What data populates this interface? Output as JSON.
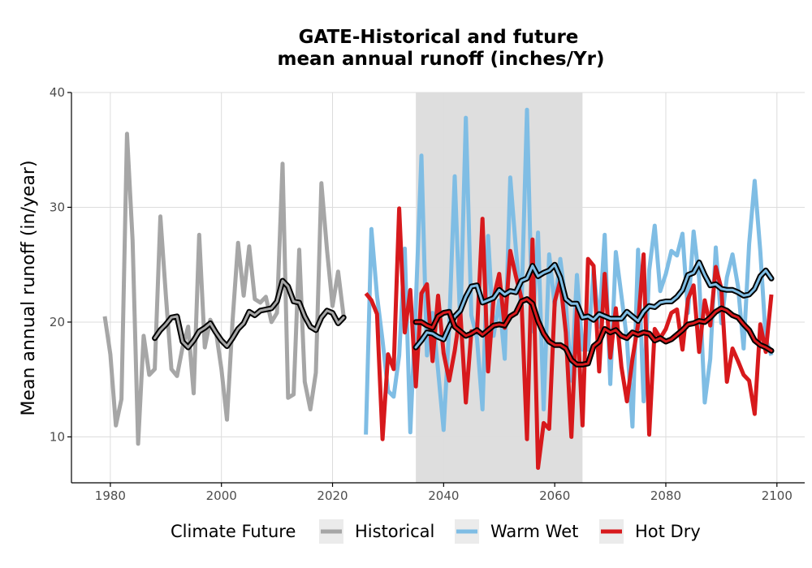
{
  "chart_data": {
    "type": "line",
    "title_line1": "GATE-Historical and future",
    "title_line2": "mean annual runoff (inches/Yr)",
    "xlabel": "",
    "ylabel": "Mean annual runoff (in/year)",
    "xlim": [
      1973,
      2105
    ],
    "ylim": [
      6,
      40
    ],
    "x_ticks": [
      1980,
      2000,
      2020,
      2040,
      2060,
      2080,
      2100
    ],
    "y_ticks": [
      10,
      20,
      30,
      40
    ],
    "grid": true,
    "shaded_period": [
      2035,
      2065
    ],
    "shaded_color": "#dcdcdc",
    "legend": {
      "title": "Climate Future",
      "placement": "bottom",
      "items": [
        "Historical",
        "Warm Wet",
        "Hot Dry"
      ]
    },
    "series": [
      {
        "name": "Historical",
        "color": "#a6a6a6",
        "x": [
          1979,
          1980,
          1981,
          1982,
          1983,
          1984,
          1985,
          1986,
          1987,
          1988,
          1989,
          1990,
          1991,
          1992,
          1993,
          1994,
          1995,
          1996,
          1997,
          1998,
          1999,
          2000,
          2001,
          2002,
          2003,
          2004,
          2005,
          2006,
          2007,
          2008,
          2009,
          2010,
          2011,
          2012,
          2013,
          2014,
          2015,
          2016,
          2017,
          2018,
          2019,
          2020,
          2021,
          2022
        ],
        "values": [
          20.5,
          17.2,
          11.0,
          13.3,
          36.4,
          27.1,
          9.4,
          18.8,
          15.4,
          15.9,
          29.2,
          22.3,
          15.9,
          15.3,
          17.8,
          19.6,
          13.8,
          27.6,
          17.8,
          20.2,
          19.2,
          15.9,
          11.5,
          20.1,
          26.9,
          22.3,
          26.6,
          22.0,
          21.7,
          22.2,
          20.0,
          20.8,
          33.8,
          13.4,
          13.7,
          26.3,
          14.8,
          12.4,
          15.6,
          32.1,
          26.3,
          21.4,
          24.4,
          20.5
        ]
      },
      {
        "name": "Warm Wet",
        "color": "#7fbde4",
        "x": [
          2026,
          2027,
          2028,
          2029,
          2030,
          2031,
          2032,
          2033,
          2034,
          2035,
          2036,
          2037,
          2038,
          2039,
          2040,
          2041,
          2042,
          2043,
          2044,
          2045,
          2046,
          2047,
          2048,
          2049,
          2050,
          2051,
          2052,
          2053,
          2054,
          2055,
          2056,
          2057,
          2058,
          2059,
          2060,
          2061,
          2062,
          2063,
          2064,
          2065,
          2066,
          2067,
          2068,
          2069,
          2070,
          2071,
          2072,
          2073,
          2074,
          2075,
          2076,
          2077,
          2078,
          2079,
          2080,
          2081,
          2082,
          2083,
          2084,
          2085,
          2086,
          2087,
          2088,
          2089,
          2090,
          2091,
          2092,
          2093,
          2094,
          2095,
          2096,
          2097,
          2098,
          2099
        ],
        "values": [
          10.2,
          28.1,
          22.3,
          18.4,
          14.0,
          13.5,
          17.1,
          26.4,
          10.4,
          21.6,
          34.5,
          17.1,
          20.8,
          15.8,
          10.6,
          19.6,
          32.7,
          19.7,
          37.8,
          20.6,
          18.6,
          12.4,
          27.5,
          18.8,
          21.9,
          16.8,
          32.6,
          26.4,
          21.0,
          38.5,
          19.2,
          27.8,
          12.4,
          25.9,
          21.4,
          25.5,
          21.7,
          14.9,
          24.1,
          17.6,
          17.6,
          24.6,
          19.6,
          27.6,
          14.6,
          26.1,
          22.3,
          18.5,
          10.9,
          26.3,
          13.1,
          24.5,
          28.4,
          22.7,
          24.2,
          26.2,
          25.8,
          27.7,
          20.8,
          27.9,
          23.8,
          13.0,
          16.8,
          26.5,
          19.9,
          23.9,
          25.9,
          23.1,
          17.7,
          26.8,
          32.3,
          26.2,
          18.5,
          17.1
        ]
      },
      {
        "name": "Hot Dry",
        "color": "#d7191c",
        "x": [
          2026,
          2027,
          2028,
          2029,
          2030,
          2031,
          2032,
          2033,
          2034,
          2035,
          2036,
          2037,
          2038,
          2039,
          2040,
          2041,
          2042,
          2043,
          2044,
          2045,
          2046,
          2047,
          2048,
          2049,
          2050,
          2051,
          2052,
          2053,
          2054,
          2055,
          2056,
          2057,
          2058,
          2059,
          2060,
          2061,
          2062,
          2063,
          2064,
          2065,
          2066,
          2067,
          2068,
          2069,
          2070,
          2071,
          2072,
          2073,
          2074,
          2075,
          2076,
          2077,
          2078,
          2079,
          2080,
          2081,
          2082,
          2083,
          2084,
          2085,
          2086,
          2087,
          2088,
          2089,
          2090,
          2091,
          2092,
          2093,
          2094,
          2095,
          2096,
          2097,
          2098,
          2099
        ],
        "values": [
          22.5,
          21.9,
          20.7,
          9.8,
          17.2,
          15.9,
          29.9,
          19.1,
          22.8,
          14.4,
          22.5,
          23.3,
          16.6,
          22.3,
          17.3,
          14.9,
          17.5,
          20.9,
          13.0,
          19.2,
          19.1,
          29.0,
          15.7,
          22.1,
          24.2,
          19.5,
          26.2,
          24.0,
          22.1,
          9.8,
          27.2,
          7.3,
          11.2,
          10.7,
          21.8,
          23.6,
          19.1,
          10.0,
          21.2,
          11.0,
          25.5,
          24.9,
          15.7,
          24.2,
          16.9,
          21.2,
          16.1,
          13.1,
          16.8,
          19.8,
          25.9,
          10.2,
          19.4,
          18.6,
          19.4,
          20.8,
          21.1,
          17.6,
          22.0,
          23.2,
          17.4,
          21.9,
          19.7,
          24.8,
          22.9,
          14.8,
          17.7,
          16.6,
          15.4,
          14.9,
          12.0,
          19.8,
          17.4,
          22.4
        ]
      },
      {
        "name": "Historical rolling mean",
        "color": "#a6a6a6",
        "x": [
          1988,
          1989,
          1990,
          1991,
          1992,
          1993,
          1994,
          1995,
          1996,
          1997,
          1998,
          1999,
          2000,
          2001,
          2002,
          2003,
          2004,
          2005,
          2006,
          2007,
          2008,
          2009,
          2010,
          2011,
          2012,
          2013,
          2014,
          2015,
          2016,
          2017,
          2018,
          2019,
          2020,
          2021,
          2022
        ],
        "values": [
          18.6,
          19.3,
          19.8,
          20.4,
          20.5,
          18.3,
          17.8,
          18.4,
          19.2,
          19.5,
          19.9,
          19.1,
          18.4,
          17.9,
          18.6,
          19.4,
          19.9,
          20.9,
          20.6,
          21.0,
          21.1,
          21.2,
          21.8,
          23.6,
          23.1,
          21.8,
          21.7,
          20.5,
          19.6,
          19.3,
          20.4,
          21.0,
          20.8,
          19.9,
          20.4
        ]
      },
      {
        "name": "Warm Wet rolling mean",
        "color": "#7fbde4",
        "x": [
          2035,
          2036,
          2037,
          2038,
          2039,
          2040,
          2041,
          2042,
          2043,
          2044,
          2045,
          2046,
          2047,
          2048,
          2049,
          2050,
          2051,
          2052,
          2053,
          2054,
          2055,
          2056,
          2057,
          2058,
          2059,
          2060,
          2061,
          2062,
          2063,
          2064,
          2065,
          2066,
          2067,
          2068,
          2069,
          2070,
          2071,
          2072,
          2073,
          2074,
          2075,
          2076,
          2077,
          2078,
          2079,
          2080,
          2081,
          2082,
          2083,
          2084,
          2085,
          2086,
          2087,
          2088,
          2089,
          2090,
          2091,
          2092,
          2093,
          2094,
          2095,
          2096,
          2097,
          2098,
          2099
        ],
        "values": [
          17.8,
          18.4,
          19.1,
          19.0,
          18.7,
          18.5,
          19.6,
          20.5,
          21.0,
          22.2,
          23.1,
          23.2,
          21.7,
          21.9,
          22.1,
          22.8,
          22.4,
          22.7,
          22.6,
          23.6,
          23.8,
          24.9,
          24.0,
          24.3,
          24.5,
          25.0,
          23.9,
          22.0,
          21.6,
          21.6,
          20.4,
          20.5,
          20.2,
          20.7,
          20.5,
          20.3,
          20.3,
          20.3,
          20.9,
          20.5,
          20.1,
          20.9,
          21.4,
          21.3,
          21.7,
          21.8,
          21.8,
          22.2,
          22.8,
          24.1,
          24.3,
          25.2,
          24.1,
          23.2,
          23.3,
          22.9,
          22.8,
          22.8,
          22.6,
          22.3,
          22.4,
          22.9,
          24.0,
          24.5,
          23.8
        ]
      },
      {
        "name": "Hot Dry rolling mean",
        "color": "#d7191c",
        "x": [
          2035,
          2036,
          2037,
          2038,
          2039,
          2040,
          2041,
          2042,
          2043,
          2044,
          2045,
          2046,
          2047,
          2048,
          2049,
          2050,
          2051,
          2052,
          2053,
          2054,
          2055,
          2056,
          2057,
          2058,
          2059,
          2060,
          2061,
          2062,
          2063,
          2064,
          2065,
          2066,
          2067,
          2068,
          2069,
          2070,
          2071,
          2072,
          2073,
          2074,
          2075,
          2076,
          2077,
          2078,
          2079,
          2080,
          2081,
          2082,
          2083,
          2084,
          2085,
          2086,
          2087,
          2088,
          2089,
          2090,
          2091,
          2092,
          2093,
          2094,
          2095,
          2096,
          2097,
          2098,
          2099
        ],
        "values": [
          20.0,
          20.0,
          19.7,
          19.5,
          20.5,
          20.8,
          20.9,
          19.6,
          19.2,
          18.8,
          19.0,
          19.3,
          18.9,
          19.3,
          19.7,
          19.8,
          19.7,
          20.5,
          20.8,
          21.8,
          22.0,
          21.6,
          20.1,
          19.0,
          18.3,
          18.0,
          18.0,
          17.7,
          16.7,
          16.3,
          16.3,
          16.4,
          17.9,
          18.3,
          19.4,
          19.1,
          19.3,
          18.8,
          18.6,
          19.1,
          18.9,
          19.1,
          19.0,
          18.4,
          18.6,
          18.3,
          18.5,
          18.9,
          19.3,
          19.8,
          19.9,
          20.1,
          20.0,
          20.4,
          20.9,
          21.2,
          21.0,
          20.6,
          20.4,
          19.8,
          19.3,
          18.4,
          18.0,
          17.8,
          17.5
        ]
      }
    ]
  }
}
